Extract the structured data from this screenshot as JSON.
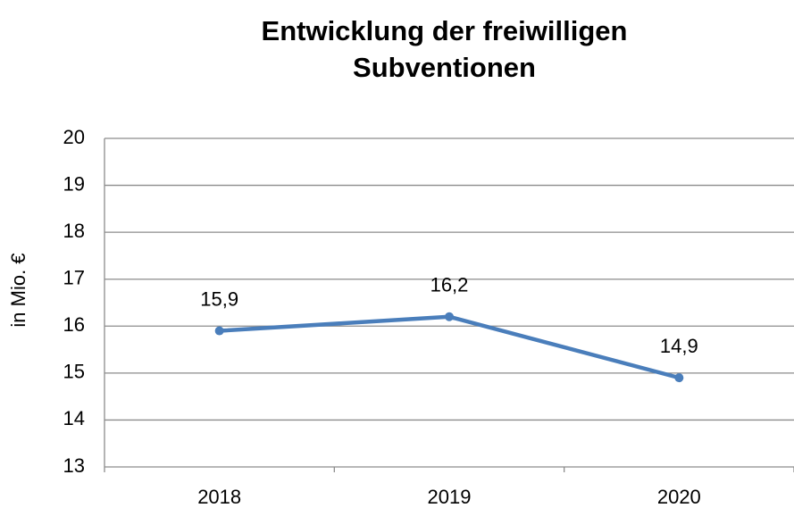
{
  "chart_data": {
    "type": "line",
    "title": "Entwicklung der freiwilligen\nSubventionen",
    "y_label": "in Mio. €",
    "categories": [
      "2018",
      "2019",
      "2020"
    ],
    "values": [
      15.9,
      16.2,
      14.9
    ],
    "value_labels": [
      "15,9",
      "16,2",
      "14,9"
    ],
    "color": "#4a7ebb",
    "ylim": [
      13,
      20
    ],
    "yticks": [
      13,
      14,
      15,
      16,
      17,
      18,
      19,
      20
    ],
    "grid": true
  }
}
